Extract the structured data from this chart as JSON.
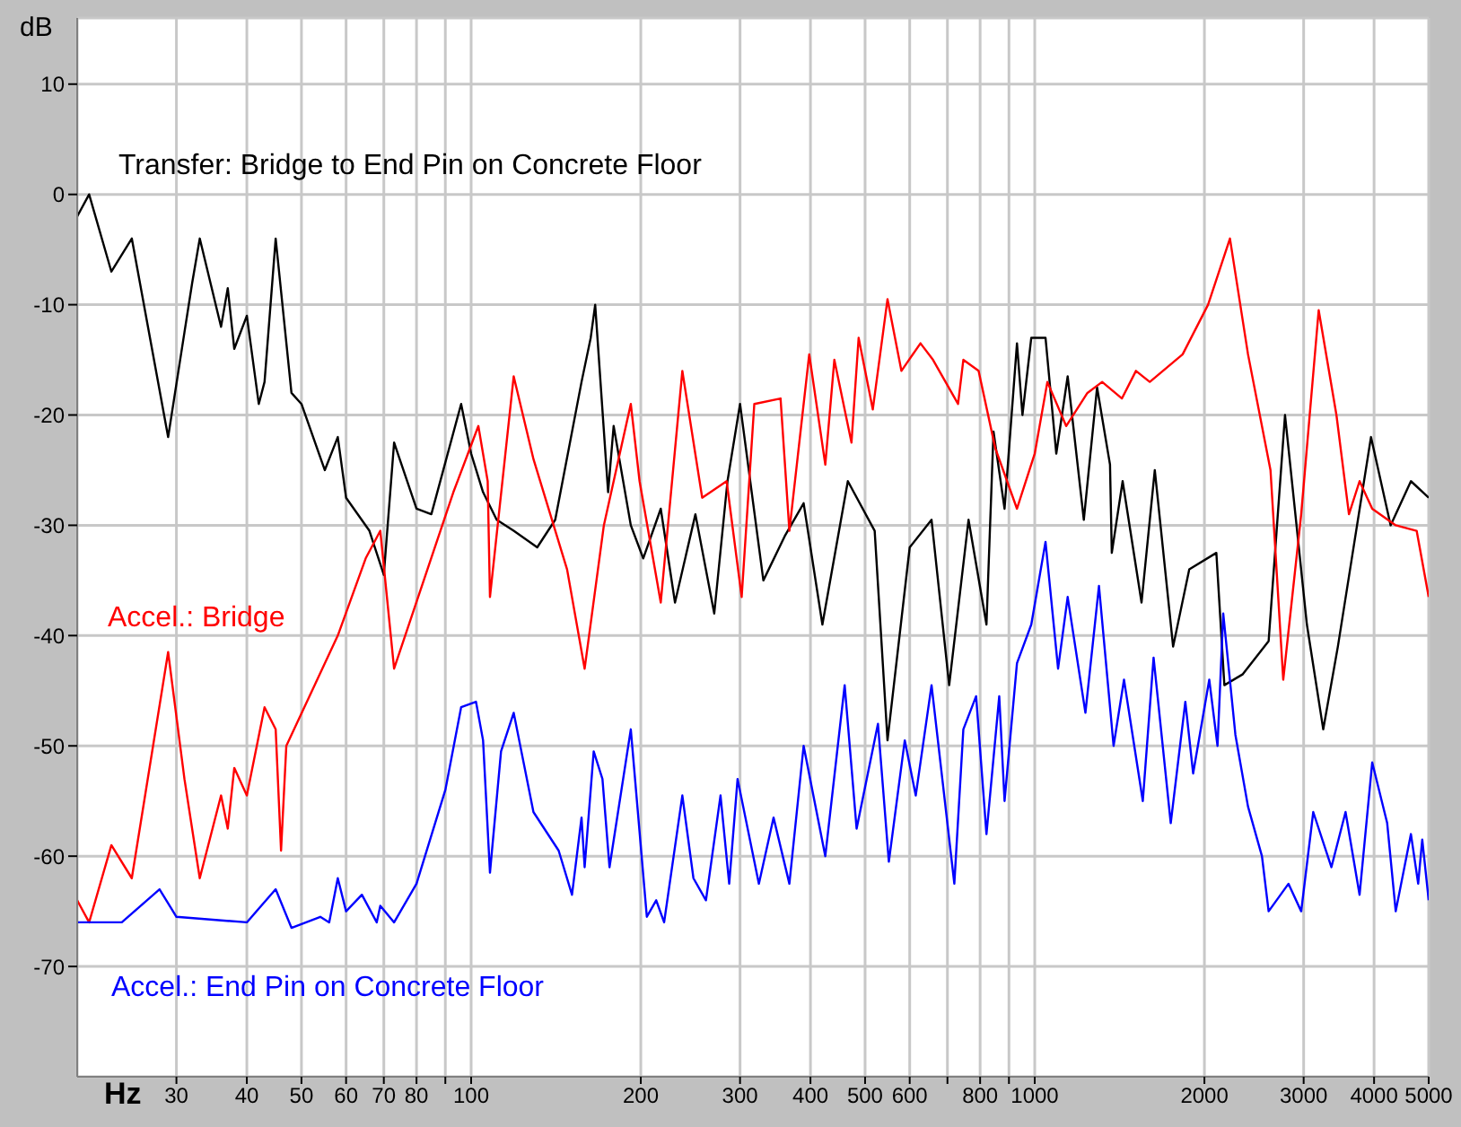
{
  "chart_data": {
    "type": "line",
    "xlabel": "Hz",
    "ylabel": "dB",
    "log": "x",
    "grid": true,
    "marker": "none",
    "line_style": "solid",
    "xlim": [
      20,
      5000
    ],
    "ylim": [
      -80,
      16
    ],
    "xticks": [
      30,
      40,
      50,
      60,
      70,
      80,
      {
        "value": 90,
        "label": null
      },
      100,
      200,
      300,
      400,
      500,
      600,
      {
        "value": 700,
        "label": null
      },
      800,
      {
        "value": 900,
        "label": null
      },
      1000,
      2000,
      3000,
      4000,
      5000
    ],
    "yticks": [
      -70,
      -60,
      -50,
      -40,
      -30,
      -20,
      -10,
      0,
      10
    ],
    "series": [
      {
        "name": "Transfer: Bridge to End Pin on Concrete Floor",
        "color": "#000000",
        "x": [
          20,
          21,
          23,
          25,
          29,
          31,
          32,
          33,
          36,
          37,
          38,
          40,
          42,
          43,
          45,
          48,
          50,
          55,
          58,
          60,
          66,
          70,
          73,
          80,
          85,
          96,
          100,
          105,
          111,
          119,
          131,
          141,
          157,
          163,
          166,
          175,
          179,
          192,
          202,
          217,
          230,
          250,
          270,
          285,
          300,
          330,
          360,
          389,
          420,
          466,
          520,
          548,
          600,
          656,
          705,
          763,
          821,
          845,
          884,
          930,
          951,
          986,
          1045,
          1092,
          1144,
          1222,
          1290,
          1360,
          1370,
          1432,
          1547,
          1633,
          1760,
          1880,
          2100,
          2170,
          2340,
          2600,
          2780,
          3040,
          3250,
          3450,
          3950,
          4280,
          4650,
          5000
        ],
        "values": [
          -2,
          0,
          -7,
          -4,
          -22,
          -12.5,
          -8,
          -4,
          -12,
          -8.5,
          -14,
          -11,
          -19,
          -17,
          -4,
          -18,
          -19,
          -25,
          -22,
          -27.5,
          -30.5,
          -34.5,
          -22.5,
          -28.5,
          -29,
          -19,
          -23.5,
          -27,
          -29.5,
          -30.5,
          -32,
          -29.5,
          -17,
          -13,
          -10,
          -27,
          -21,
          -30,
          -33,
          -28.5,
          -37,
          -29,
          -38,
          -26,
          -19,
          -35,
          -31,
          -28,
          -39,
          -26,
          -30.5,
          -49.5,
          -32,
          -29.5,
          -44.5,
          -29.5,
          -39,
          -21.5,
          -28.5,
          -13.5,
          -20,
          -13,
          -13,
          -23.5,
          -16.5,
          -29.5,
          -17.5,
          -24.5,
          -32.5,
          -26,
          -37,
          -25,
          -41,
          -34,
          -32.5,
          -44.5,
          -43.5,
          -40.5,
          -20,
          -39,
          -48.5,
          -41,
          -22,
          -30,
          -26,
          -27.5
        ]
      },
      {
        "name": "Accel.: Bridge",
        "color": "#ff0000",
        "x": [
          20,
          21,
          23,
          25,
          29,
          31,
          33,
          36,
          37,
          38,
          40,
          43,
          45,
          46,
          47,
          58,
          65,
          69,
          73,
          93,
          103,
          107,
          108,
          119,
          129,
          148,
          159,
          172,
          192,
          199,
          217,
          237,
          257,
          284,
          302,
          318,
          354,
          367,
          398,
          425,
          441,
          473,
          487,
          516,
          548,
          580,
          627,
          660,
          731,
          747,
          795,
          851,
          930,
          1000,
          1053,
          1137,
          1240,
          1317,
          1428,
          1512,
          1600,
          1830,
          2030,
          2220,
          2390,
          2620,
          2760,
          2970,
          3190,
          3430,
          3610,
          3770,
          3970,
          4370,
          4760,
          5000
        ],
        "values": [
          -64,
          -66,
          -59,
          -62,
          -41.5,
          -53,
          -62,
          -54.5,
          -57.5,
          -52,
          -54.5,
          -46.5,
          -48.5,
          -59.5,
          -50,
          -40,
          -33,
          -30.5,
          -43,
          -27,
          -21,
          -26,
          -36.5,
          -16.5,
          -24,
          -34,
          -43,
          -30,
          -19,
          -26,
          -37,
          -16,
          -27.5,
          -26,
          -36.5,
          -19,
          -18.5,
          -30.5,
          -14.5,
          -24.5,
          -15,
          -22.5,
          -13,
          -19.5,
          -9.5,
          -16,
          -13.5,
          -15,
          -19,
          -15,
          -16,
          -23,
          -28.5,
          -23.5,
          -17,
          -21,
          -18,
          -17,
          -18.5,
          -16,
          -17,
          -14.5,
          -10,
          -4,
          -14.5,
          -25,
          -44,
          -29,
          -10.5,
          -20,
          -29,
          -26,
          -28.5,
          -30,
          -30.5,
          -36.5
        ]
      },
      {
        "name": "Accel.: End Pin on Concrete Floor",
        "color": "#0000ff",
        "x": [
          20,
          24,
          28,
          30,
          40,
          45,
          48,
          54,
          56,
          58,
          60,
          64,
          68,
          69,
          73,
          80,
          90,
          96,
          102,
          105,
          108,
          113,
          119,
          129,
          143,
          151,
          157,
          159,
          165,
          171,
          176,
          192,
          205,
          213,
          220,
          237,
          248,
          261,
          277,
          287,
          297,
          324,
          344,
          367,
          389,
          425,
          460,
          483,
          527,
          551,
          588,
          615,
          656,
          720,
          747,
          787,
          821,
          865,
          884,
          930,
          986,
          1045,
          1100,
          1144,
          1230,
          1300,
          1380,
          1440,
          1555,
          1625,
          1743,
          1850,
          1910,
          2040,
          2110,
          2160,
          2270,
          2390,
          2530,
          2600,
          2820,
          2970,
          3120,
          3360,
          3560,
          3770,
          3970,
          4220,
          4370,
          4650,
          4790,
          4870,
          5000
        ],
        "values": [
          -66,
          -66,
          -63,
          -65.5,
          -66,
          -63,
          -66.5,
          -65.5,
          -66,
          -62,
          -65,
          -63.5,
          -66,
          -64.5,
          -66,
          -62.5,
          -54,
          -46.5,
          -46,
          -49.5,
          -61.5,
          -50.5,
          -47,
          -56,
          -59.5,
          -63.5,
          -56.5,
          -61,
          -50.5,
          -53,
          -61,
          -48.5,
          -65.5,
          -64,
          -66,
          -54.5,
          -62,
          -64,
          -54.5,
          -62.5,
          -53,
          -62.5,
          -56.5,
          -62.5,
          -50,
          -60,
          -44.5,
          -57.5,
          -48,
          -60.5,
          -49.5,
          -54.5,
          -44.5,
          -62.5,
          -48.5,
          -45.5,
          -58,
          -45.5,
          -55,
          -42.5,
          -39,
          -31.5,
          -43,
          -36.5,
          -47,
          -35.5,
          -50,
          -44,
          -55,
          -42,
          -57,
          -46,
          -52.5,
          -44,
          -50,
          -38,
          -49,
          -55.5,
          -60,
          -65,
          -62.5,
          -65,
          -56,
          -61,
          -56,
          -63.5,
          -51.5,
          -57,
          -65,
          -58,
          -62.5,
          -58.5,
          -64
        ]
      }
    ]
  }
}
